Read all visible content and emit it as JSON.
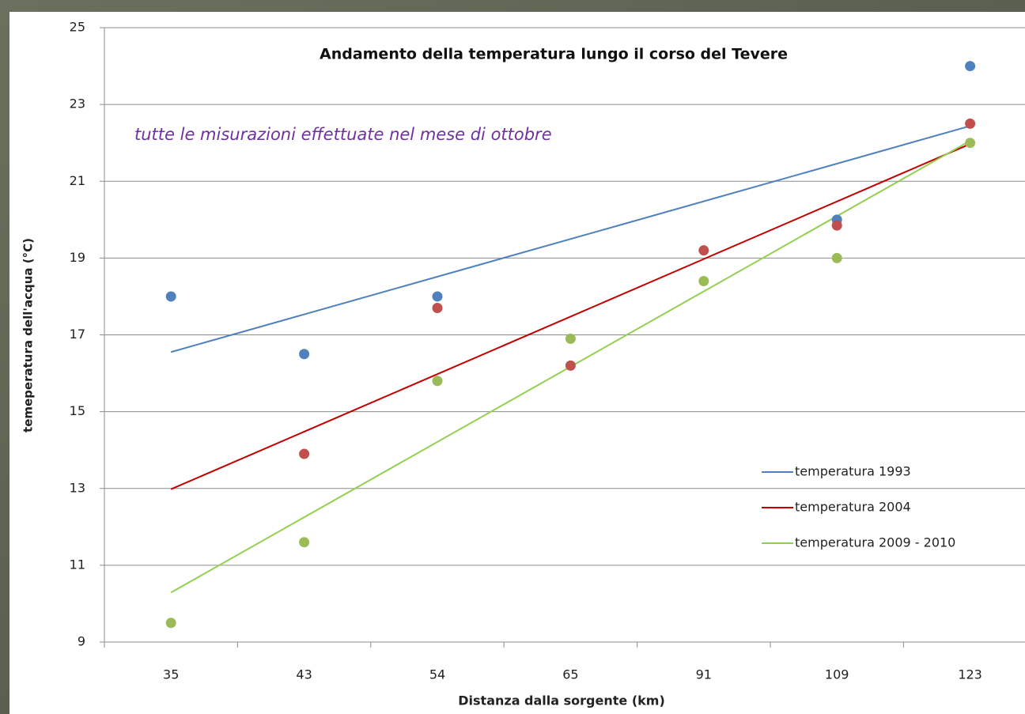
{
  "chart_data": {
    "type": "scatter",
    "title": "Andamento della temperatura lungo il corso del Tevere",
    "subtitle": "tutte le misurazioni effettuate nel mese di ottobre",
    "x_label": "Distanza dalla sorgente (km)",
    "y_label": "temeperatura dell'acqua (°C)",
    "categories": [
      "35",
      "43",
      "54",
      "65",
      "91",
      "109",
      "123"
    ],
    "series": [
      {
        "name": "temperatura 1993",
        "color": "#4f81bd",
        "trendline_color": "#4f81bd",
        "values": [
          18,
          16.5,
          18,
          null,
          null,
          20,
          24
        ]
      },
      {
        "name": "temperatura 2004",
        "color": "#c0504d",
        "trendline_color": "#c00000",
        "values": [
          null,
          13.9,
          17.7,
          16.2,
          19.2,
          19.85,
          22.5
        ]
      },
      {
        "name": "temperatura 2009 - 2010",
        "color": "#9bbb59",
        "trendline_color": "#92d050",
        "values": [
          9.5,
          11.6,
          15.8,
          16.9,
          18.4,
          19,
          22
        ]
      }
    ],
    "trendline": "linear",
    "ylim": [
      9,
      25
    ],
    "yticks": [
      9,
      11,
      13,
      15,
      17,
      19,
      21,
      23,
      25
    ],
    "grid": true,
    "legend": "right"
  }
}
